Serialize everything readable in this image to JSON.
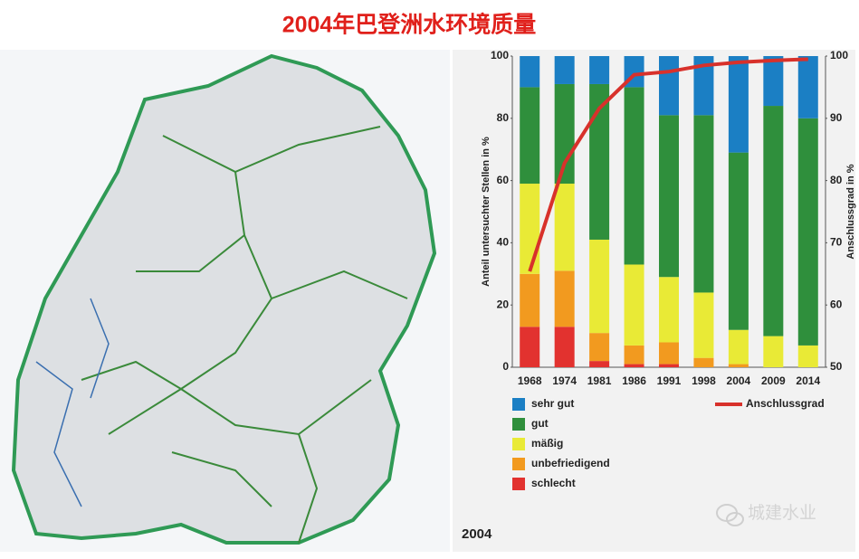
{
  "chart_data": {
    "type": "stacked_bar",
    "title": "2004年巴登洲水环境质量",
    "ylabel": "Anteil untersuchter Stellen in %",
    "y2label": "Anschlussgrad in %",
    "annotation": "2004",
    "watermark": "城建水业",
    "categories": [
      "1968",
      "1974",
      "1981",
      "1986",
      "1991",
      "1998",
      "2004",
      "2009",
      "2014"
    ],
    "ylim": [
      0,
      100
    ],
    "yticks": [
      0,
      20,
      40,
      60,
      80,
      100
    ],
    "y2lim": [
      50,
      100
    ],
    "y2ticks": [
      50,
      60,
      70,
      80,
      90,
      100
    ],
    "series": [
      {
        "name": "sehr gut",
        "color": "#1b7fc4",
        "values": [
          10,
          9,
          9,
          10,
          19,
          19,
          31,
          16,
          20
        ]
      },
      {
        "name": "gut",
        "color": "#2f8f3c",
        "values": [
          31,
          32,
          50,
          57,
          52,
          57,
          57,
          74,
          73
        ]
      },
      {
        "name": "mäßig",
        "color": "#e9ea36",
        "values": [
          29,
          28,
          30,
          26,
          21,
          21,
          11,
          10,
          7
        ]
      },
      {
        "name": "unbefriedigend",
        "color": "#f29a1f",
        "values": [
          17,
          18,
          9,
          6,
          7,
          3,
          1,
          0,
          0
        ]
      },
      {
        "name": "schlecht",
        "color": "#e2322f",
        "values": [
          13,
          13,
          2,
          1,
          1,
          0,
          0,
          0,
          0
        ]
      },
      {
        "name": "Anschlussgrad",
        "color": "#d8312b",
        "axis": "y2",
        "values": [
          65.4,
          82.8,
          91.6,
          97,
          97.5,
          98.5,
          99,
          99.3,
          99.5
        ]
      }
    ]
  }
}
